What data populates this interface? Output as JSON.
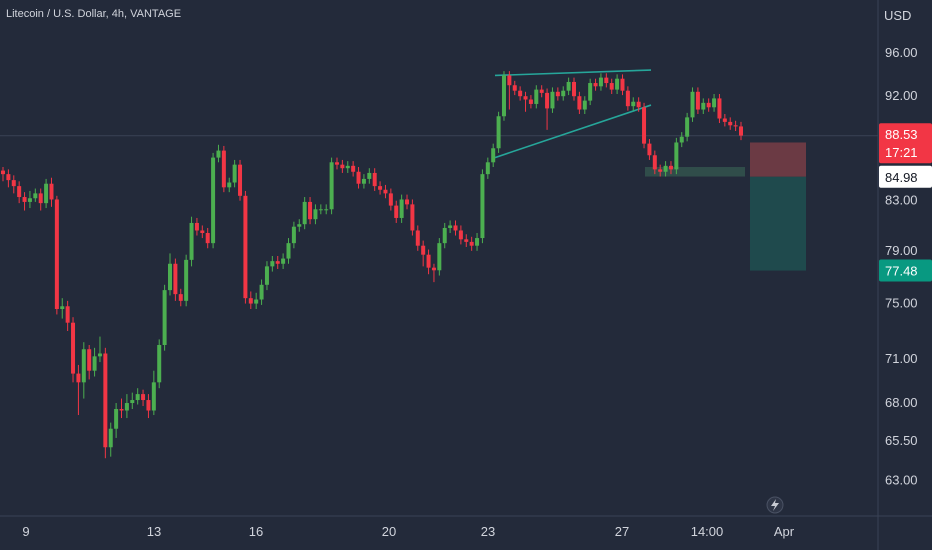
{
  "header": {
    "title": "Litecoin / U.S. Dollar, 4h, VANTAGE",
    "currency": "USD"
  },
  "colors": {
    "background": "#232a3a",
    "up": "#4caf50",
    "down": "#f23645",
    "trendline": "#26a69a",
    "stop_zone": "#6b3a44",
    "target_zone": "#1f4a4d",
    "last_price_badge": "#f23645",
    "target_badge": "#089981"
  },
  "icons": {
    "lightning": "lightning-icon"
  },
  "chart_data": {
    "type": "candlestick",
    "title": "Litecoin / U.S. Dollar, 4h, VANTAGE",
    "ylabel": "USD",
    "ylim": [
      61.5,
      98.2
    ],
    "y_ticks": [
      "96.00",
      "92.00",
      "88.00",
      "83.00",
      "79.00",
      "75.00",
      "71.00",
      "68.00",
      "65.50",
      "63.00"
    ],
    "x_ticks": [
      "9",
      "13",
      "16",
      "20",
      "23",
      "27",
      "14:00",
      "Apr"
    ],
    "badges": {
      "last_price": "88.53",
      "countdown": "17:21",
      "entry": "84.98",
      "target": "77.48"
    },
    "position": {
      "entry": 84.98,
      "stop": 87.9,
      "target": 77.48
    },
    "support_zone": [
      85.0,
      85.8
    ],
    "trendlines": [
      {
        "name": "upper",
        "start": [
          0,
          93.9
        ],
        "end": [
          1,
          94.4
        ]
      },
      {
        "name": "lower",
        "start": [
          0,
          86.6
        ],
        "end": [
          1,
          91.2
        ]
      }
    ],
    "candles": [
      [
        85.5,
        85.2,
        85.8,
        84.6
      ],
      [
        85.2,
        84.7,
        85.6,
        84.1
      ],
      [
        84.7,
        84.2,
        85.1,
        83.6
      ],
      [
        84.2,
        83.3,
        84.6,
        82.8
      ],
      [
        83.3,
        82.9,
        83.7,
        82.2
      ],
      [
        82.9,
        83.2,
        83.8,
        82.4
      ],
      [
        83.2,
        83.6,
        84.0,
        82.9
      ],
      [
        83.6,
        82.8,
        84.0,
        82.2
      ],
      [
        82.8,
        84.4,
        84.8,
        82.4
      ],
      [
        84.4,
        83.1,
        84.9,
        82.5
      ],
      [
        83.1,
        74.6,
        83.4,
        74.2
      ],
      [
        74.6,
        74.8,
        75.4,
        73.9
      ],
      [
        74.8,
        73.6,
        75.2,
        73.0
      ],
      [
        73.6,
        70.0,
        74.0,
        69.4
      ],
      [
        70.0,
        69.4,
        70.6,
        67.2
      ],
      [
        69.4,
        71.7,
        72.2,
        68.3
      ],
      [
        71.7,
        70.2,
        72.0,
        69.6
      ],
      [
        70.2,
        71.2,
        71.8,
        69.8
      ],
      [
        71.2,
        71.4,
        72.6,
        70.8
      ],
      [
        71.4,
        65.1,
        71.8,
        64.4
      ],
      [
        65.1,
        66.3,
        66.7,
        64.5
      ],
      [
        66.3,
        67.6,
        68.0,
        65.7
      ],
      [
        67.6,
        67.5,
        68.3,
        67.0
      ],
      [
        67.5,
        68.0,
        68.6,
        67.0
      ],
      [
        68.0,
        68.2,
        68.7,
        67.6
      ],
      [
        68.2,
        68.6,
        69.0,
        67.9
      ],
      [
        68.6,
        68.2,
        68.9,
        67.8
      ],
      [
        68.2,
        67.5,
        68.6,
        67.0
      ],
      [
        67.5,
        69.4,
        70.2,
        67.2
      ],
      [
        69.4,
        72.0,
        72.4,
        69.0
      ],
      [
        72.0,
        76.0,
        76.4,
        71.6
      ],
      [
        76.0,
        78.0,
        78.8,
        75.6
      ],
      [
        78.0,
        75.7,
        78.4,
        75.2
      ],
      [
        75.7,
        75.2,
        76.1,
        74.8
      ],
      [
        75.2,
        78.3,
        78.7,
        74.8
      ],
      [
        78.3,
        81.2,
        81.7,
        77.8
      ],
      [
        81.2,
        80.6,
        81.6,
        80.2
      ],
      [
        80.6,
        80.4,
        81.0,
        80.0
      ],
      [
        80.4,
        79.6,
        80.8,
        79.2
      ],
      [
        79.6,
        86.6,
        87.0,
        79.2
      ],
      [
        86.6,
        87.2,
        87.7,
        86.2
      ],
      [
        87.2,
        84.1,
        87.6,
        83.7
      ],
      [
        84.1,
        84.5,
        84.9,
        83.7
      ],
      [
        84.5,
        86.0,
        86.4,
        84.1
      ],
      [
        86.0,
        83.4,
        86.4,
        83.0
      ],
      [
        83.4,
        75.4,
        83.8,
        75.0
      ],
      [
        75.4,
        75.0,
        75.9,
        74.6
      ],
      [
        75.0,
        75.3,
        75.8,
        74.6
      ],
      [
        75.3,
        76.4,
        76.8,
        74.9
      ],
      [
        76.4,
        77.8,
        78.2,
        76.0
      ],
      [
        77.8,
        78.2,
        78.6,
        77.4
      ],
      [
        78.2,
        78.0,
        78.6,
        77.6
      ],
      [
        78.0,
        78.4,
        78.8,
        77.6
      ],
      [
        78.4,
        79.6,
        80.0,
        78.0
      ],
      [
        79.6,
        80.9,
        81.3,
        79.2
      ],
      [
        80.9,
        81.1,
        81.5,
        80.5
      ],
      [
        81.1,
        82.9,
        83.3,
        80.7
      ],
      [
        82.9,
        81.5,
        83.3,
        81.1
      ],
      [
        81.5,
        82.3,
        82.7,
        81.1
      ],
      [
        82.3,
        82.3,
        82.7,
        81.9
      ],
      [
        82.3,
        82.3,
        82.7,
        81.9
      ],
      [
        82.3,
        86.2,
        86.6,
        81.9
      ],
      [
        86.2,
        86.0,
        86.6,
        85.6
      ],
      [
        86.0,
        85.7,
        86.4,
        85.3
      ],
      [
        85.7,
        85.9,
        86.3,
        85.3
      ],
      [
        85.9,
        85.4,
        86.3,
        85.0
      ],
      [
        85.4,
        84.4,
        85.8,
        84.0
      ],
      [
        84.4,
        84.8,
        85.2,
        84.0
      ],
      [
        84.8,
        85.3,
        85.7,
        84.4
      ],
      [
        85.3,
        84.2,
        85.7,
        83.8
      ],
      [
        84.2,
        83.9,
        84.6,
        83.5
      ],
      [
        83.9,
        83.6,
        84.3,
        83.2
      ],
      [
        83.6,
        82.6,
        84.0,
        82.2
      ],
      [
        82.6,
        81.6,
        83.0,
        81.2
      ],
      [
        81.6,
        83.1,
        83.5,
        81.2
      ],
      [
        83.1,
        82.7,
        83.5,
        82.3
      ],
      [
        82.7,
        80.6,
        83.1,
        80.2
      ],
      [
        80.6,
        79.4,
        81.0,
        79.0
      ],
      [
        79.4,
        78.7,
        79.8,
        77.8
      ],
      [
        78.7,
        77.7,
        79.1,
        77.2
      ],
      [
        77.7,
        77.5,
        78.0,
        76.6
      ],
      [
        77.5,
        79.6,
        80.0,
        77.1
      ],
      [
        79.6,
        80.8,
        81.2,
        79.2
      ],
      [
        80.8,
        81.0,
        81.4,
        80.4
      ],
      [
        81.0,
        80.6,
        81.4,
        80.2
      ],
      [
        80.6,
        79.9,
        81.0,
        79.5
      ],
      [
        79.9,
        79.7,
        80.3,
        79.3
      ],
      [
        79.7,
        79.4,
        80.1,
        79.0
      ],
      [
        79.4,
        80.0,
        80.4,
        79.0
      ],
      [
        80.0,
        85.2,
        85.6,
        79.6
      ],
      [
        85.2,
        86.2,
        86.6,
        84.8
      ],
      [
        86.2,
        87.4,
        87.8,
        85.8
      ],
      [
        87.4,
        90.2,
        90.6,
        87.0
      ],
      [
        90.2,
        93.9,
        94.3,
        89.8
      ],
      [
        93.9,
        93.0,
        94.3,
        90.8
      ],
      [
        93.0,
        92.5,
        93.4,
        92.1
      ],
      [
        92.5,
        92.0,
        92.9,
        91.6
      ],
      [
        92.0,
        91.7,
        92.4,
        90.6
      ],
      [
        91.7,
        91.3,
        92.1,
        90.9
      ],
      [
        91.3,
        92.6,
        93.0,
        90.9
      ],
      [
        92.6,
        92.3,
        93.0,
        91.9
      ],
      [
        92.3,
        90.9,
        92.7,
        89.0
      ],
      [
        90.9,
        92.4,
        92.8,
        90.5
      ],
      [
        92.4,
        92.0,
        92.8,
        91.6
      ],
      [
        92.0,
        92.5,
        92.9,
        91.6
      ],
      [
        92.5,
        93.3,
        93.7,
        92.1
      ],
      [
        93.3,
        92.0,
        93.7,
        91.6
      ],
      [
        92.0,
        90.8,
        92.4,
        90.4
      ],
      [
        90.8,
        91.6,
        92.0,
        90.4
      ],
      [
        91.6,
        93.2,
        93.6,
        91.2
      ],
      [
        93.2,
        92.9,
        93.6,
        92.5
      ],
      [
        92.9,
        93.7,
        94.1,
        92.5
      ],
      [
        93.7,
        93.2,
        94.1,
        92.8
      ],
      [
        93.2,
        92.6,
        93.6,
        92.2
      ],
      [
        92.6,
        93.6,
        94.0,
        92.2
      ],
      [
        93.6,
        92.5,
        94.0,
        92.1
      ],
      [
        92.5,
        91.1,
        92.9,
        90.7
      ],
      [
        91.1,
        91.5,
        91.9,
        90.7
      ],
      [
        91.5,
        91.0,
        91.9,
        90.6
      ],
      [
        91.0,
        87.8,
        91.4,
        87.4
      ],
      [
        87.8,
        86.8,
        88.2,
        86.4
      ],
      [
        86.8,
        85.6,
        87.2,
        85.2
      ],
      [
        85.6,
        85.4,
        86.0,
        85.0
      ],
      [
        85.4,
        85.9,
        86.3,
        85.0
      ],
      [
        85.9,
        85.6,
        86.3,
        85.2
      ],
      [
        85.6,
        87.9,
        88.3,
        85.2
      ],
      [
        87.9,
        88.4,
        88.8,
        87.5
      ],
      [
        88.4,
        90.1,
        90.5,
        88.0
      ],
      [
        90.1,
        92.4,
        92.8,
        89.7
      ],
      [
        92.4,
        90.8,
        92.8,
        90.4
      ],
      [
        90.8,
        91.4,
        91.8,
        90.4
      ],
      [
        91.4,
        91.0,
        91.8,
        90.6
      ],
      [
        91.0,
        91.8,
        92.2,
        90.6
      ],
      [
        91.8,
        90.0,
        92.2,
        89.6
      ],
      [
        90.0,
        89.7,
        90.4,
        89.3
      ],
      [
        89.7,
        89.4,
        90.1,
        89.0
      ],
      [
        89.4,
        89.3,
        89.8,
        88.9
      ],
      [
        89.3,
        88.5,
        89.7,
        88.1
      ]
    ]
  }
}
